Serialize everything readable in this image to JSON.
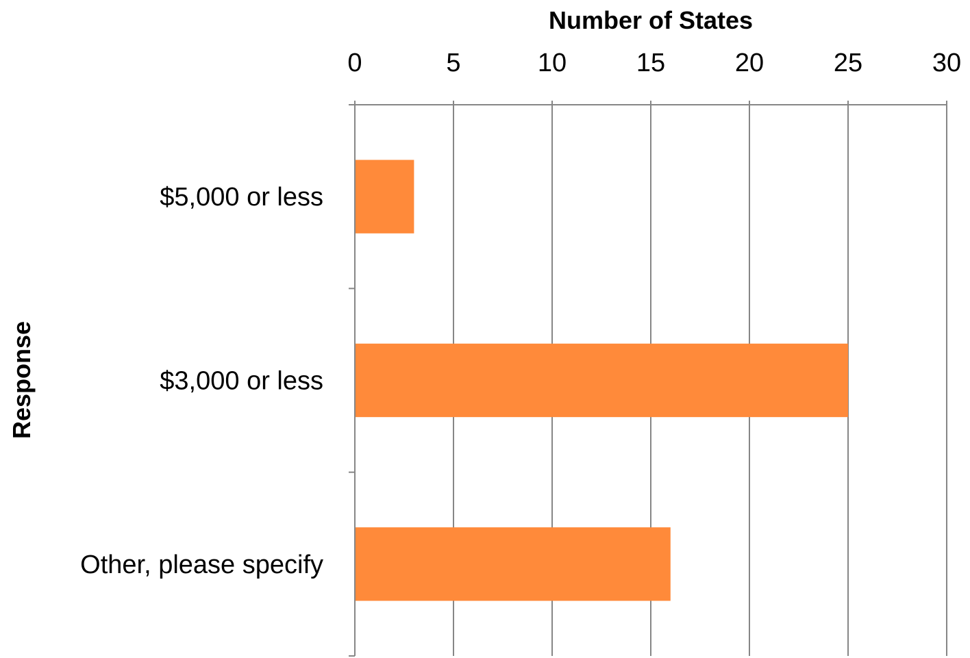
{
  "chart_data": {
    "type": "bar",
    "orientation": "horizontal",
    "categories": [
      "$5,000 or less",
      "$3,000 or less",
      "Other, please specify"
    ],
    "values": [
      3,
      25,
      16
    ],
    "xlabel": "Number of States",
    "ylabel": "Response",
    "xlim": [
      0,
      30
    ],
    "xticks": [
      "0",
      "5",
      "10",
      "15",
      "20",
      "25",
      "30"
    ],
    "x_axis_position": "top",
    "grid": true,
    "legend": "none",
    "bar_color": "#FF8A3A",
    "grid_color": "#868686"
  }
}
